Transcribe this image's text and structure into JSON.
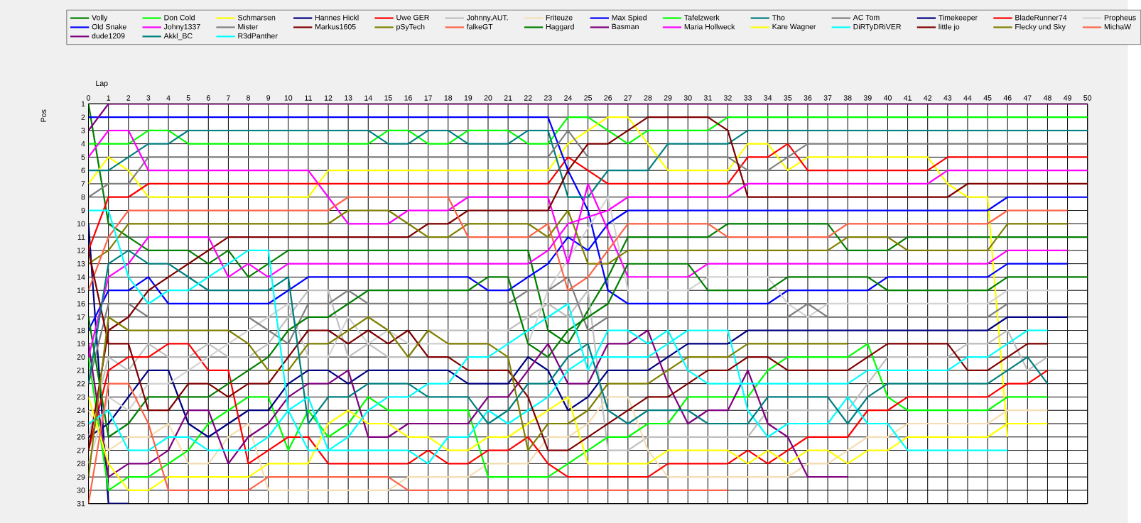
{
  "chart_data": {
    "type": "line",
    "xlabel": "Lap",
    "ylabel": "Pos",
    "xlim": [
      0,
      50
    ],
    "ylim": [
      31,
      1
    ],
    "xticks": [
      0,
      1,
      2,
      3,
      4,
      5,
      6,
      7,
      8,
      9,
      10,
      11,
      12,
      13,
      14,
      15,
      16,
      17,
      18,
      19,
      20,
      21,
      22,
      23,
      24,
      25,
      26,
      27,
      28,
      29,
      30,
      31,
      32,
      33,
      34,
      35,
      36,
      37,
      38,
      39,
      40,
      41,
      42,
      43,
      44,
      45,
      46,
      47,
      48,
      49,
      50
    ],
    "yticks": [
      1,
      2,
      3,
      4,
      5,
      6,
      7,
      8,
      9,
      10,
      11,
      12,
      13,
      14,
      15,
      16,
      17,
      18,
      19,
      20,
      21,
      22,
      23,
      24,
      25,
      26,
      27,
      28,
      29,
      30,
      31
    ],
    "grid": true,
    "legend": "top",
    "series": [
      {
        "name": "Volly",
        "color": "#008000",
        "x": [
          0,
          1,
          2,
          3,
          5,
          6,
          7,
          8,
          9,
          10,
          22,
          23,
          24,
          26,
          27,
          31,
          32,
          37,
          38,
          40,
          41,
          50
        ],
        "values": [
          1,
          10,
          11,
          12,
          12,
          13,
          12,
          14,
          13,
          12,
          12,
          18,
          19,
          14,
          11,
          11,
          10,
          10,
          12,
          12,
          11,
          11
        ]
      },
      {
        "name": "Don Cold",
        "color": "#00ff00",
        "x": [
          0,
          2,
          3,
          4,
          5,
          14,
          15,
          16,
          17,
          18,
          19,
          21,
          22,
          23,
          24,
          25,
          26,
          27,
          28,
          31,
          32,
          50
        ],
        "values": [
          4,
          4,
          3,
          3,
          4,
          4,
          3,
          3,
          4,
          4,
          3,
          3,
          4,
          4,
          2,
          2,
          3,
          4,
          3,
          3,
          2,
          2
        ]
      },
      {
        "name": "Schmarsen",
        "color": "#ffff00",
        "x": [
          0,
          1,
          2,
          3,
          11,
          12,
          23,
          24,
          25,
          26,
          27,
          28,
          29,
          32,
          33,
          34,
          35,
          36,
          42,
          43,
          44,
          45,
          46
        ],
        "values": [
          7,
          5,
          6,
          8,
          8,
          6,
          6,
          4,
          3,
          2,
          2,
          4,
          6,
          6,
          4,
          4,
          6,
          5,
          5,
          7,
          8,
          8,
          26
        ]
      },
      {
        "name": "Hannes Hickl",
        "color": "#000080",
        "x": [
          0,
          1,
          2
        ],
        "values": [
          10,
          31,
          31
        ]
      },
      {
        "name": "Uwe GER",
        "color": "#ff0000",
        "x": [
          0,
          1,
          2,
          3,
          23,
          24,
          25,
          26,
          32,
          33,
          34,
          35,
          36,
          42,
          43,
          50
        ],
        "values": [
          12,
          8,
          8,
          7,
          7,
          5,
          6,
          7,
          7,
          5,
          5,
          4,
          6,
          6,
          5,
          5
        ]
      },
      {
        "name": "Johnny.AUT.",
        "color": "#c0c0c0",
        "x": [
          0,
          1,
          2,
          3,
          4,
          5,
          6,
          7,
          8,
          9,
          10,
          11,
          12,
          13,
          14,
          15,
          16,
          17,
          21,
          22,
          23,
          24,
          25,
          26,
          27,
          28,
          33,
          34,
          38,
          39,
          40,
          43,
          44,
          45,
          46,
          47,
          48
        ],
        "values": [
          26,
          20,
          21,
          19,
          20,
          20,
          19,
          20,
          20,
          19,
          17,
          15,
          15,
          20,
          19,
          20,
          20,
          18,
          18,
          17,
          16,
          17,
          15,
          27,
          27,
          26,
          26,
          24,
          24,
          22,
          20,
          20,
          19,
          19,
          18,
          21,
          20
        ]
      },
      {
        "name": "Friteuze",
        "color": "#f5deb3",
        "x": [
          0,
          1,
          2,
          3,
          4,
          5,
          6,
          7,
          8,
          9,
          15,
          16,
          19,
          20,
          22,
          23,
          24,
          25,
          26,
          27,
          28,
          29,
          35,
          36,
          37,
          39,
          40,
          41,
          45,
          46,
          48
        ],
        "values": [
          24,
          27,
          26,
          26,
          25,
          28,
          28,
          26,
          25,
          30,
          30,
          29,
          29,
          28,
          28,
          26,
          26,
          25,
          23,
          23,
          27,
          29,
          29,
          28,
          28,
          26,
          26,
          25,
          25,
          24,
          24
        ]
      },
      {
        "name": "Max Spied",
        "color": "#0000ff",
        "x": [
          0,
          23,
          24,
          25,
          26,
          27,
          34,
          35,
          39,
          40,
          45,
          46,
          49
        ],
        "values": [
          2,
          2,
          6,
          9,
          15,
          16,
          16,
          15,
          15,
          14,
          14,
          13,
          13
        ]
      },
      {
        "name": "Tafelzwerk",
        "color": "#00ff00",
        "x": [
          0,
          1,
          2,
          3,
          5,
          6,
          8,
          9,
          10,
          11,
          12,
          13,
          14,
          15,
          17,
          19,
          20,
          23,
          24,
          25,
          26,
          27,
          28,
          29,
          30,
          33,
          34,
          35,
          38,
          39,
          40,
          41,
          45,
          46,
          48
        ],
        "values": [
          20,
          30,
          29,
          29,
          27,
          25,
          23,
          23,
          27,
          24,
          26,
          25,
          23,
          24,
          24,
          24,
          29,
          29,
          28,
          27,
          26,
          26,
          25,
          25,
          23,
          23,
          21,
          20,
          20,
          19,
          23,
          24,
          24,
          23,
          23
        ]
      },
      {
        "name": "Tho",
        "color": "#008080",
        "x": [
          0,
          1,
          2,
          3,
          4,
          5,
          14,
          15,
          16,
          17,
          18,
          19,
          21,
          22,
          23,
          24,
          25,
          26,
          28,
          29,
          32,
          33,
          50
        ],
        "values": [
          6,
          6,
          5,
          4,
          4,
          3,
          3,
          4,
          4,
          3,
          3,
          4,
          4,
          3,
          3,
          8,
          8,
          6,
          6,
          4,
          4,
          3,
          3
        ]
      },
      {
        "name": "AC Tom",
        "color": "#808080",
        "x": [
          0,
          1,
          2,
          3,
          23,
          24,
          25,
          32,
          33,
          34,
          36,
          50
        ],
        "values": [
          8,
          7,
          7,
          5,
          5,
          3,
          5,
          5,
          6,
          6,
          4,
          4
        ]
      },
      {
        "name": "Timekeeper",
        "color": "#000080",
        "x": [
          0,
          1,
          2,
          3,
          4,
          5,
          6,
          7,
          8,
          9,
          10,
          11,
          12,
          13,
          14,
          18,
          19,
          21,
          22,
          23,
          24,
          25,
          26,
          28,
          29,
          30,
          32,
          33,
          45,
          46,
          49
        ],
        "values": [
          26,
          25,
          23,
          21,
          21,
          25,
          26,
          25,
          24,
          24,
          22,
          21,
          21,
          22,
          21,
          21,
          22,
          22,
          20,
          21,
          24,
          23,
          21,
          21,
          20,
          19,
          19,
          18,
          18,
          17,
          17
        ]
      },
      {
        "name": "BladeRunner74",
        "color": "#ff0000",
        "x": [
          0,
          1,
          2,
          3,
          4,
          5,
          6,
          7,
          8,
          9,
          10,
          11,
          12,
          16,
          17,
          18,
          19,
          20,
          21,
          22,
          23,
          24,
          28,
          29,
          32,
          33,
          34,
          35,
          36,
          38,
          39,
          40,
          41,
          45,
          46,
          47,
          48
        ],
        "values": [
          27,
          21,
          20,
          20,
          19,
          19,
          21,
          21,
          28,
          27,
          26,
          26,
          28,
          28,
          27,
          28,
          28,
          27,
          27,
          26,
          28,
          29,
          29,
          28,
          28,
          27,
          28,
          27,
          26,
          26,
          24,
          24,
          23,
          23,
          22,
          22,
          21
        ]
      },
      {
        "name": "Propheus",
        "color": "#d3d3d3",
        "x": [
          0,
          1,
          2,
          3,
          4,
          5,
          6,
          7,
          8,
          9,
          10,
          11,
          12,
          13,
          14,
          15,
          16,
          22,
          23,
          26,
          27,
          30,
          31,
          34,
          35,
          36,
          37,
          45,
          46,
          49
        ],
        "values": [
          28,
          23,
          24,
          22,
          22,
          21,
          20,
          19,
          18,
          17,
          16,
          20,
          20,
          17,
          19,
          18,
          19,
          19,
          15,
          8,
          15,
          15,
          14,
          14,
          16,
          17,
          16,
          16,
          15,
          15
        ]
      },
      {
        "name": "Old Snake",
        "color": "#0000ff",
        "x": [
          0,
          1,
          2,
          3,
          4,
          9,
          10,
          11,
          19,
          20,
          21,
          22,
          23,
          24,
          25,
          26,
          27,
          45,
          46,
          50
        ],
        "values": [
          18,
          15,
          15,
          14,
          16,
          16,
          15,
          14,
          14,
          15,
          15,
          14,
          13,
          11,
          12,
          10,
          9,
          9,
          8,
          8
        ]
      },
      {
        "name": "Johny1337",
        "color": "#ff00ff",
        "x": [
          0,
          1,
          2,
          3,
          11,
          12,
          13,
          15,
          16,
          18,
          19,
          23,
          24,
          25,
          27,
          30,
          31,
          45,
          46,
          49
        ],
        "values": [
          5,
          3,
          3,
          6,
          6,
          8,
          10,
          10,
          9,
          9,
          8,
          8,
          13,
          7,
          14,
          14,
          13,
          13,
          12,
          12
        ]
      },
      {
        "name": "Mister",
        "color": "#808080",
        "x": [
          0,
          1,
          2,
          3,
          8,
          9,
          10,
          11,
          12,
          13,
          14,
          21,
          22,
          23,
          24,
          25,
          26,
          35,
          36,
          37,
          45,
          46,
          49
        ],
        "values": [
          22,
          16,
          16,
          17,
          17,
          18,
          19,
          16,
          16,
          15,
          16,
          16,
          15,
          15,
          14,
          18,
          17,
          17,
          16,
          17,
          17,
          16,
          16
        ]
      },
      {
        "name": "Markus1605",
        "color": "#800000",
        "x": [
          0,
          1,
          2,
          3,
          7,
          16,
          17,
          18,
          19,
          23,
          24,
          25,
          26,
          28,
          31,
          32,
          33,
          43,
          44,
          50
        ],
        "values": [
          27,
          18,
          17,
          15,
          11,
          11,
          10,
          10,
          9,
          9,
          6,
          4,
          4,
          2,
          2,
          3,
          8,
          8,
          7,
          7
        ]
      },
      {
        "name": "pSyTech",
        "color": "#808000",
        "x": [
          0,
          1,
          2,
          12,
          13,
          15,
          16,
          17,
          18,
          19,
          22,
          23,
          24,
          25,
          26,
          27,
          37,
          38,
          40,
          41,
          45,
          46,
          49
        ],
        "values": [
          13,
          12,
          10,
          10,
          9,
          9,
          10,
          11,
          11,
          10,
          10,
          11,
          9,
          13,
          13,
          12,
          12,
          11,
          11,
          12,
          12,
          10,
          10
        ]
      },
      {
        "name": "falkeGT",
        "color": "#ff6347",
        "x": [
          0,
          1,
          2,
          12,
          13,
          18,
          19,
          22,
          23,
          24,
          25,
          27,
          31,
          32,
          37,
          38,
          45,
          46,
          49
        ],
        "values": [
          15,
          11,
          9,
          9,
          8,
          8,
          11,
          11,
          10,
          15,
          14,
          10,
          10,
          11,
          11,
          10,
          10,
          9,
          9
        ]
      },
      {
        "name": "Haggard",
        "color": "#008000",
        "x": [
          0,
          1,
          2,
          3,
          6,
          7,
          8,
          9,
          10,
          11,
          12,
          13,
          14,
          19,
          20,
          21,
          22,
          23,
          24,
          25,
          26,
          27,
          30,
          31,
          34,
          35,
          39,
          40,
          45,
          46,
          50
        ],
        "values": [
          17,
          26,
          25,
          23,
          23,
          22,
          21,
          20,
          18,
          17,
          17,
          16,
          15,
          15,
          14,
          14,
          19,
          20,
          18,
          17,
          16,
          13,
          13,
          15,
          15,
          14,
          14,
          15,
          15,
          14,
          14
        ]
      },
      {
        "name": "Basman",
        "color": "#800080",
        "x": [
          0,
          1,
          2,
          3,
          4,
          5,
          6,
          7,
          8,
          9,
          10,
          11,
          12,
          13,
          14,
          15,
          16,
          19,
          20,
          21,
          22,
          23,
          24,
          25,
          26,
          27,
          28,
          29,
          30,
          31,
          32,
          33,
          34,
          35,
          36,
          38
        ],
        "values": [
          19,
          29,
          28,
          28,
          27,
          24,
          24,
          28,
          26,
          25,
          23,
          22,
          22,
          21,
          26,
          26,
          25,
          25,
          23,
          23,
          21,
          19,
          22,
          22,
          19,
          19,
          18,
          22,
          25,
          24,
          24,
          21,
          25,
          26,
          29,
          29
        ]
      },
      {
        "name": "Maria Hollweck",
        "color": "#ff00ff",
        "x": [
          0,
          1,
          2,
          3,
          6,
          7,
          8,
          9,
          10,
          22,
          23,
          24,
          26,
          27,
          32,
          33,
          42,
          43,
          50
        ],
        "values": [
          20,
          14,
          13,
          11,
          11,
          14,
          13,
          14,
          13,
          13,
          12,
          10,
          9,
          8,
          8,
          7,
          7,
          6,
          6
        ]
      },
      {
        "name": "Kare Wagner",
        "color": "#ffff00",
        "x": [
          0,
          1,
          2,
          3,
          4,
          8,
          9,
          11,
          12,
          13,
          14,
          15,
          16,
          17,
          18,
          19,
          20,
          21,
          24,
          25,
          28,
          29,
          32,
          33,
          34,
          35,
          36,
          37,
          38,
          39,
          40,
          41,
          45,
          46,
          48
        ],
        "values": [
          23,
          28,
          30,
          30,
          29,
          29,
          28,
          28,
          25,
          24,
          25,
          25,
          26,
          26,
          27,
          27,
          26,
          26,
          23,
          28,
          28,
          27,
          27,
          28,
          27,
          28,
          27,
          27,
          28,
          27,
          27,
          26,
          26,
          25,
          25
        ]
      },
      {
        "name": "DiRTyDRiVER",
        "color": "#00ffff",
        "x": [
          0,
          1,
          2,
          3,
          4,
          5,
          6,
          8,
          9,
          10,
          11,
          16,
          17,
          18,
          19,
          20,
          21,
          22,
          23,
          24,
          25,
          28,
          29,
          30,
          32,
          33,
          34,
          35,
          37,
          38,
          39,
          40,
          41,
          46
        ],
        "values": [
          25,
          24,
          27,
          27,
          26,
          26,
          27,
          27,
          26,
          24,
          27,
          27,
          28,
          26,
          26,
          24,
          25,
          24,
          23,
          21,
          20,
          20,
          19,
          18,
          18,
          24,
          26,
          25,
          25,
          23,
          25,
          25,
          27,
          27
        ]
      },
      {
        "name": "little jo",
        "color": "#800000",
        "x": [
          0,
          1,
          2,
          3,
          4,
          5,
          6,
          7,
          8,
          9,
          10,
          11,
          12,
          13,
          14,
          15,
          16,
          17,
          18,
          19,
          21,
          22,
          23,
          24,
          28,
          29,
          30,
          31,
          32,
          33,
          34,
          35,
          38,
          39,
          40,
          43,
          44,
          45,
          46,
          47,
          48
        ],
        "values": [
          12,
          19,
          19,
          24,
          24,
          22,
          22,
          23,
          22,
          22,
          20,
          18,
          18,
          19,
          18,
          19,
          18,
          20,
          20,
          21,
          21,
          23,
          27,
          27,
          23,
          23,
          22,
          21,
          21,
          20,
          20,
          21,
          21,
          20,
          19,
          19,
          21,
          21,
          20,
          19,
          19
        ]
      },
      {
        "name": "Flecky und Sky",
        "color": "#808000",
        "x": [
          0,
          1,
          2,
          7,
          8,
          9,
          10,
          11,
          12,
          14,
          15,
          16,
          17,
          18,
          20,
          21,
          22,
          23,
          24,
          25,
          26,
          28,
          30,
          32,
          33,
          38
        ],
        "values": [
          29,
          17,
          18,
          18,
          19,
          21,
          21,
          19,
          19,
          17,
          18,
          20,
          18,
          19,
          19,
          20,
          27,
          25,
          25,
          24,
          22,
          22,
          20,
          20,
          19,
          19
        ]
      },
      {
        "name": "MichaW",
        "color": "#ff6347",
        "x": [
          0,
          1,
          2,
          3,
          4,
          8,
          9,
          15,
          16,
          32
        ],
        "values": [
          31,
          22,
          22,
          25,
          30,
          30,
          29,
          29,
          30,
          30
        ]
      },
      {
        "name": "dude1209",
        "color": "#800080",
        "x": [
          0,
          1,
          50
        ],
        "values": [
          3,
          1,
          1
        ]
      },
      {
        "name": "Akkl_BC",
        "color": "#008080",
        "x": [
          0,
          1,
          2,
          3,
          4,
          6,
          9,
          10,
          11,
          12,
          13,
          14,
          16,
          17,
          19,
          20,
          21,
          22,
          23,
          24,
          25,
          26,
          27,
          28,
          30,
          31,
          33,
          34,
          37,
          38,
          39,
          40,
          45,
          46,
          47,
          48
        ],
        "values": [
          22,
          13,
          12,
          13,
          13,
          15,
          15,
          14,
          25,
          23,
          23,
          22,
          22,
          23,
          23,
          25,
          24,
          22,
          22,
          20,
          19,
          24,
          25,
          24,
          24,
          25,
          25,
          23,
          23,
          25,
          23,
          22,
          22,
          21,
          20,
          22
        ]
      },
      {
        "name": "R3dPanther",
        "color": "#00ffff",
        "x": [
          0,
          1,
          2,
          3,
          4,
          5,
          8,
          9,
          10,
          11,
          12,
          13,
          14,
          15,
          16,
          17,
          18,
          19,
          20,
          21,
          22,
          23,
          24,
          25,
          26,
          27,
          28,
          29,
          30,
          31,
          38,
          39,
          43,
          44,
          45,
          46,
          47,
          48
        ],
        "values": [
          9,
          9,
          14,
          16,
          15,
          15,
          12,
          12,
          24,
          23,
          27,
          26,
          24,
          23,
          23,
          22,
          22,
          20,
          20,
          19,
          18,
          17,
          16,
          21,
          18,
          18,
          19,
          18,
          21,
          22,
          22,
          21,
          21,
          20,
          20,
          19,
          18,
          18
        ]
      }
    ]
  }
}
